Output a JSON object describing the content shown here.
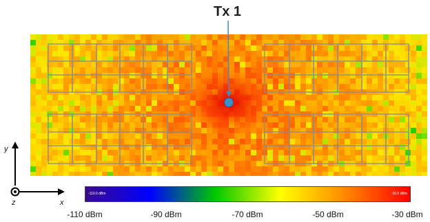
{
  "transmitter": {
    "label": "Tx 1",
    "color": "#3a8fc8"
  },
  "colorbar": {
    "min_label": "-110.0 dBm",
    "max_label": "-30.0 dBm",
    "ticks": [
      "-110 dBm",
      "-90 dBm",
      "-70 dBm",
      "-50 dBm",
      "-30 dBm"
    ],
    "stops": [
      "#3a0a8a",
      "#0000ff",
      "#00c800",
      "#ffff00",
      "#ff8800",
      "#ff0000"
    ]
  },
  "axes": {
    "x": "x",
    "y": "y",
    "z": "z"
  },
  "chart_data": {
    "type": "heatmap",
    "value_range_dbm": [
      -110,
      -30
    ],
    "palette_dbm": [
      -70,
      -30
    ],
    "colorbar_ticks_dbm": [
      -110,
      -90,
      -70,
      -50,
      -30
    ]
  }
}
